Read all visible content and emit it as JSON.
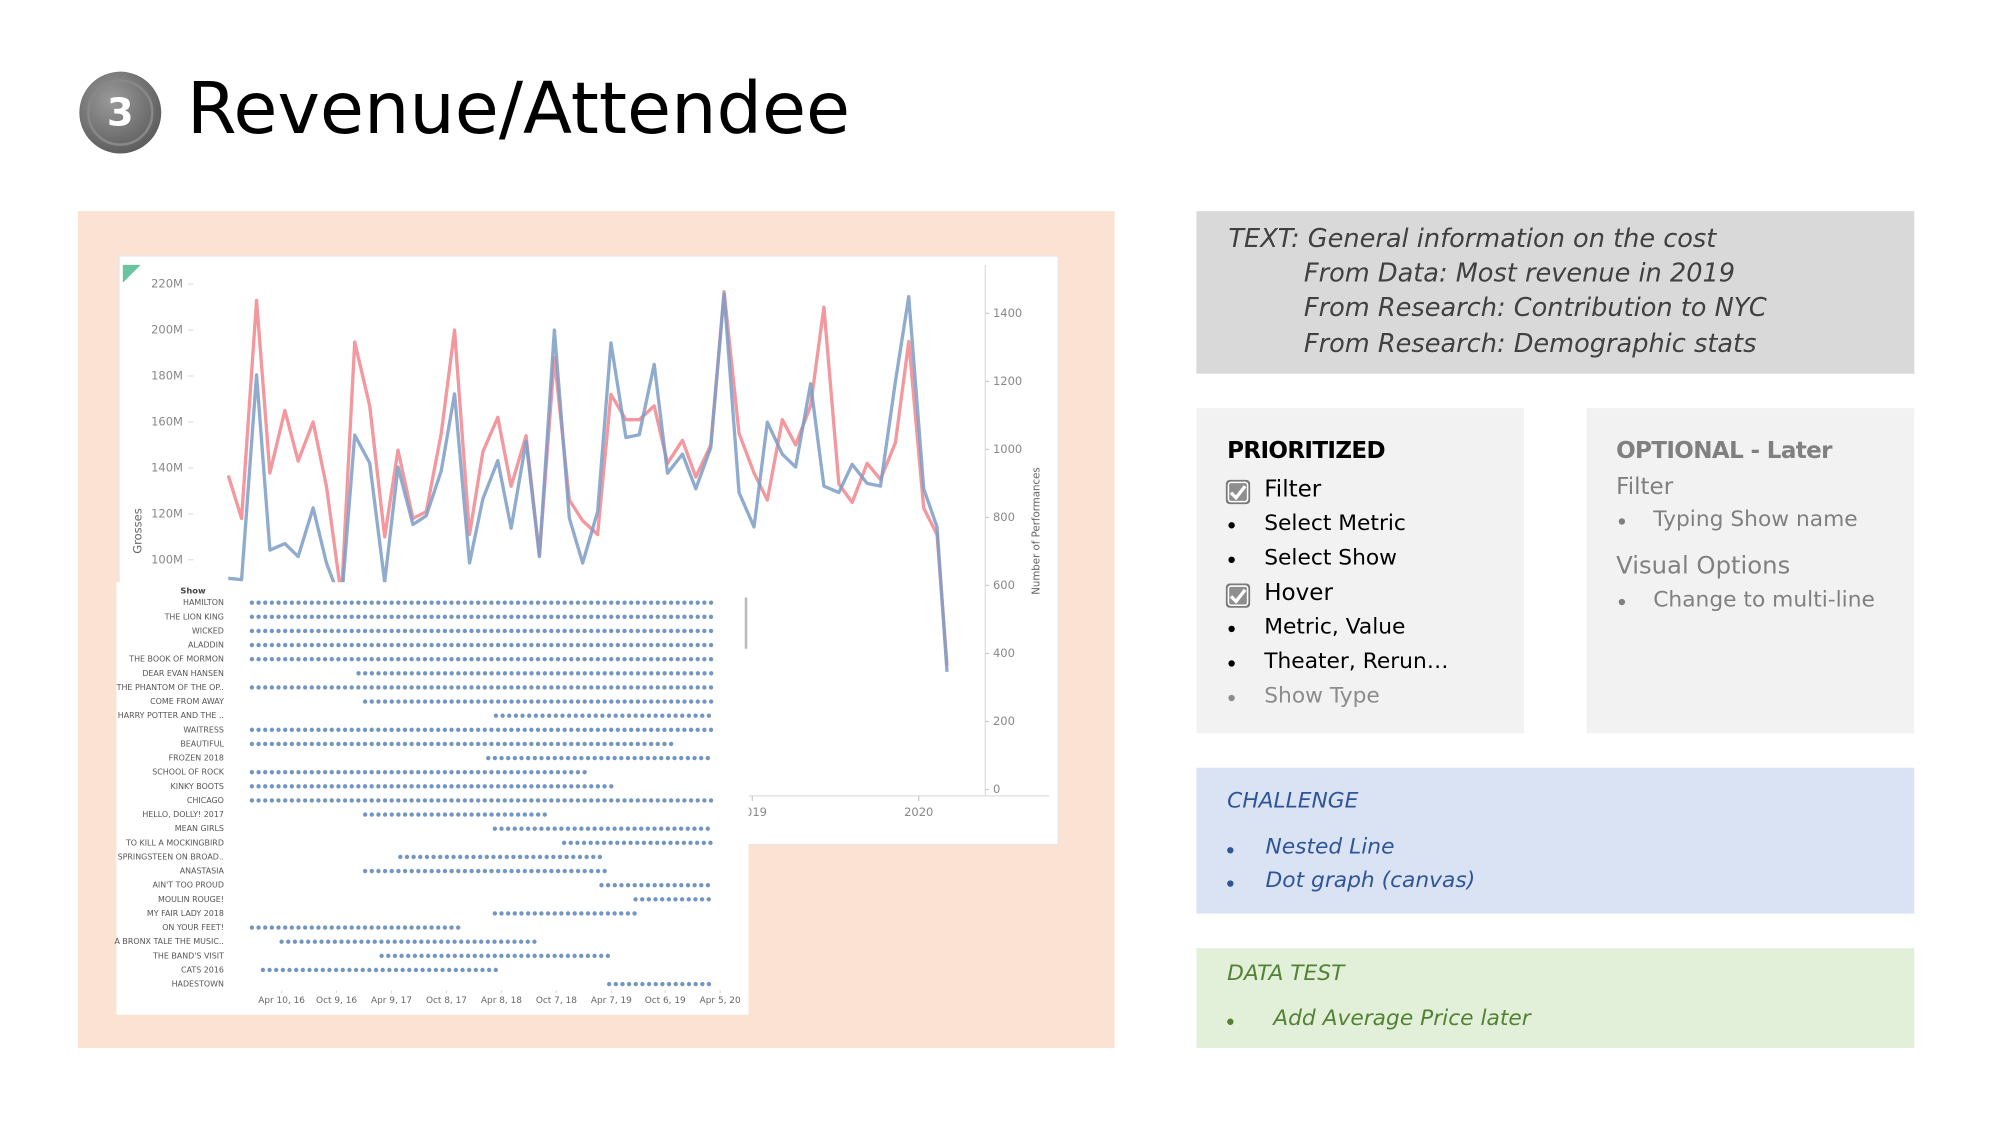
{
  "slide": {
    "number": "3",
    "title": "Revenue/Attendee"
  },
  "text_box": {
    "lines": [
      "TEXT: General information on the cost",
      "From Data: Most revenue in 2019",
      "From Research: Contribution to NYC",
      "From Research: Demographic stats"
    ]
  },
  "prioritized": {
    "heading": "PRIORITIZED",
    "items": [
      "Filter",
      "Select Metric",
      "Select Show",
      "Hover",
      "Metric, Value",
      "Theater, Rerun…",
      "Show Type"
    ]
  },
  "optional": {
    "heading": "OPTIONAL - Later",
    "filter": "Filter",
    "filter_items": [
      "Typing Show name"
    ],
    "visual": "Visual Options",
    "visual_items": [
      "Change to multi-line"
    ]
  },
  "challenge": {
    "heading": "CHALLENGE",
    "items": [
      "Nested Line",
      "Dot graph (canvas)"
    ]
  },
  "data_test": {
    "heading": "DATA TEST",
    "items": [
      "Add Average Price later"
    ]
  },
  "chart_data": [
    {
      "type": "line",
      "ylabel": "Grosses",
      "y2label": "Number of Performances",
      "x": [
        2015.85,
        2015.93,
        2016.02,
        2016.1,
        2016.19,
        2016.27,
        2016.36,
        2016.44,
        2016.53,
        2016.61,
        2016.7,
        2016.79,
        2016.87,
        2016.96,
        2017.04,
        2017.13,
        2017.21,
        2017.3,
        2017.38,
        2017.47,
        2017.55,
        2017.64,
        2017.72,
        2017.81,
        2017.9,
        2017.98,
        2018.07,
        2018.15,
        2018.24,
        2018.32,
        2018.41,
        2018.49,
        2018.58,
        2018.66,
        2018.75,
        2018.83,
        2018.92,
        2019.01,
        2019.09,
        2019.18,
        2019.26,
        2019.35,
        2019.43,
        2019.52,
        2019.6,
        2019.69,
        2019.77,
        2019.86,
        2019.94,
        2020.03,
        2020.11,
        2020.17
      ],
      "series": [
        {
          "color": "#f0868d",
          "values": [
            136.7,
            118,
            212.9,
            137.8,
            165,
            143,
            160,
            132,
            84,
            194.8,
            167,
            110,
            147.7,
            118,
            121,
            155,
            200,
            111,
            147,
            162,
            132,
            154,
            102,
            188,
            126,
            117,
            111,
            172,
            161,
            161,
            167,
            142,
            152,
            136,
            150,
            216.7,
            155,
            137.8,
            126,
            161,
            150,
            167,
            210,
            133,
            125,
            142,
            135,
            151,
            195,
            122.5,
            111,
            54
          ]
        },
        {
          "color": "#7b9cc6",
          "axis": "y2",
          "values": [
            621,
            617,
            1219,
            704,
            723,
            685,
            828,
            666,
            550,
            1042,
            960,
            610,
            948,
            779,
            805,
            937,
            1163,
            666,
            854,
            967,
            768,
            1024,
            685,
            1351,
            798,
            666,
            817,
            1313,
            1035,
            1043,
            1250,
            930,
            986,
            884,
            1005,
            1457,
            873,
            772,
            1080,
            986,
            948,
            1193,
            892,
            873,
            956,
            900,
            892,
            1200,
            1449,
            884,
            772,
            346
          ]
        }
      ],
      "xlim": [
        2015.67,
        2020.4
      ],
      "xticks": [
        2019,
        2020
      ],
      "ylim": [
        0,
        229.5
      ],
      "yticks": [
        {
          "value": 100,
          "label": "100M"
        },
        {
          "value": 120,
          "label": "120M"
        },
        {
          "value": 140,
          "label": "140M"
        },
        {
          "value": 160,
          "label": "160M"
        },
        {
          "value": 180,
          "label": "180M"
        },
        {
          "value": 200,
          "label": "200M"
        },
        {
          "value": 220,
          "label": "220M"
        }
      ],
      "y2lim": [
        0,
        1550
      ],
      "y2ticks": [
        0,
        200,
        400,
        600,
        800,
        1000,
        1200,
        1400
      ]
    },
    {
      "type": "dot",
      "category_label": "Show",
      "color": "#5b84b5",
      "categories": [
        "HAMILTON",
        "THE LION KING",
        "WICKED",
        "ALADDIN",
        "THE BOOK OF MORMON",
        "DEAR EVAN HANSEN",
        "THE PHANTOM OF THE OP..",
        "COME FROM AWAY",
        "HARRY POTTER AND THE ..",
        "WAITRESS",
        "BEAUTIFUL",
        "FROZEN 2018",
        "SCHOOL OF ROCK",
        "KINKY BOOTS",
        "CHICAGO",
        "HELLO, DOLLY! 2017",
        "MEAN GIRLS",
        "TO KILL A MOCKINGBIRD",
        "SPRINGSTEEN ON BROAD..",
        "ANASTASIA",
        "AIN'T TOO PROUD",
        "MOULIN ROUGE!",
        "MY FAIR LADY 2018",
        "ON YOUR FEET!",
        "A BRONX TALE THE MUSIC..",
        "THE BAND'S VISIT",
        "CATS 2016",
        "HADESTOWN"
      ],
      "starts": [
        2016.0,
        2016.0,
        2016.0,
        2016.0,
        2016.0,
        2016.97,
        2016.0,
        2017.03,
        2018.22,
        2016.0,
        2016.0,
        2018.15,
        2016.0,
        2016.0,
        2016.0,
        2017.03,
        2018.21,
        2018.84,
        2017.35,
        2017.03,
        2019.18,
        2019.49,
        2018.21,
        2016.0,
        2016.27,
        2017.18,
        2016.1,
        2019.25
      ],
      "ends": [
        2020.2,
        2020.2,
        2020.2,
        2020.2,
        2020.2,
        2020.2,
        2020.2,
        2020.2,
        2020.2,
        2020.2,
        2019.84,
        2020.2,
        2019.06,
        2019.28,
        2020.2,
        2018.68,
        2020.2,
        2020.2,
        2019.2,
        2019.24,
        2020.2,
        2020.2,
        2019.53,
        2017.92,
        2018.61,
        2019.28,
        2018.25,
        2020.2
      ],
      "xlim": [
        2015.92,
        2020.46
      ],
      "xticks": [
        {
          "value": 2016.27,
          "label": "Apr 10, 16"
        },
        {
          "value": 2016.77,
          "label": "Oct 9, 16"
        },
        {
          "value": 2017.27,
          "label": "Apr 9, 17"
        },
        {
          "value": 2017.77,
          "label": "Oct 8, 17"
        },
        {
          "value": 2018.27,
          "label": "Apr 8, 18"
        },
        {
          "value": 2018.77,
          "label": "Oct 7, 18"
        },
        {
          "value": 2019.27,
          "label": "Apr 7, 19"
        },
        {
          "value": 2019.76,
          "label": "Oct 6, 19"
        },
        {
          "value": 2020.26,
          "label": "Apr 5, 20"
        }
      ]
    }
  ]
}
